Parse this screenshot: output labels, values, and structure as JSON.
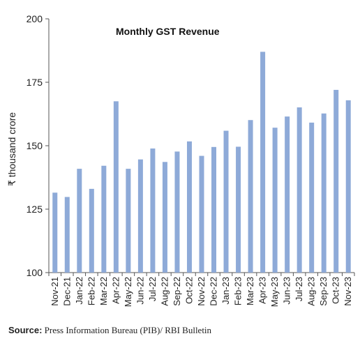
{
  "chart_data": {
    "type": "bar",
    "title": "Monthly GST Revenue",
    "ylabel": "₹ thousand crore",
    "ylim": [
      100,
      200
    ],
    "yticks": [
      100,
      125,
      150,
      175,
      200
    ],
    "bar_color": "#8eaad8",
    "categories": [
      "Nov-21",
      "Dec-21",
      "Jan-22",
      "Feb-22",
      "Mar-22",
      "Apr-22",
      "May-22",
      "Jun-22",
      "Jul-22",
      "Aug-22",
      "Sep-22",
      "Oct-22",
      "Nov-22",
      "Dec-22",
      "Jan-23",
      "Feb-23",
      "Mar-23",
      "Apr-23",
      "May-23",
      "Jun-23",
      "Jul-23",
      "Aug-23",
      "Sep-23",
      "Oct-23",
      "Nov-23"
    ],
    "values": [
      131.5,
      129.8,
      140.9,
      133.0,
      142.1,
      167.5,
      140.9,
      144.6,
      148.9,
      143.6,
      147.7,
      151.7,
      146.0,
      149.5,
      155.9,
      149.6,
      160.1,
      187.0,
      157.1,
      161.5,
      165.1,
      159.1,
      162.7,
      172.0,
      167.9
    ]
  },
  "source": {
    "label": "Source:",
    "text": " Press Information Bureau (PIB)/ RBI Bulletin"
  }
}
